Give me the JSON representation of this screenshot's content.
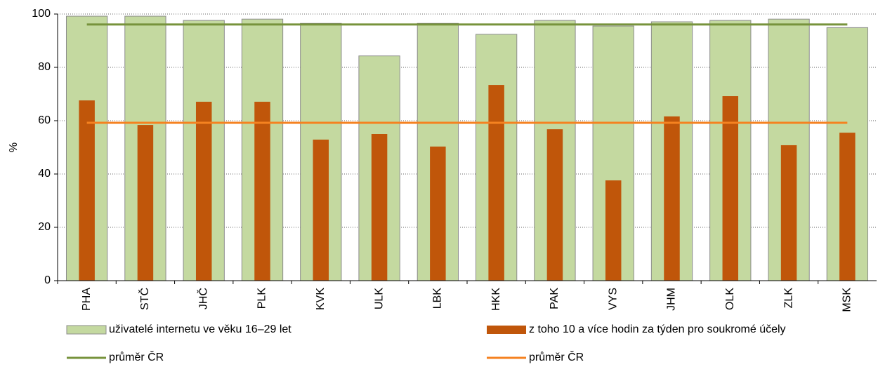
{
  "chart_data": {
    "type": "bar",
    "y_label": "%",
    "categories": [
      "PHA",
      "STČ",
      "JHČ",
      "PLK",
      "KVK",
      "ULK",
      "LBK",
      "HKK",
      "PAK",
      "VYS",
      "JHM",
      "OLK",
      "ZLK",
      "MSK"
    ],
    "series": [
      {
        "name": "uživatelé internetu ve věku 16–29 let",
        "type": "bar",
        "color": "#c4d9a0",
        "values": [
          99.2,
          99.2,
          97.6,
          98.1,
          96.5,
          84.3,
          96.5,
          92.4,
          97.6,
          95.5,
          97.1,
          97.6,
          98.1,
          94.9
        ]
      },
      {
        "name": "z toho 10 a více hodin za týden pro soukromé účely",
        "type": "bar",
        "color": "#c0560a",
        "values": [
          67.6,
          58.4,
          67.1,
          67.1,
          52.9,
          55.0,
          50.3,
          73.4,
          56.8,
          37.6,
          61.6,
          69.2,
          50.8,
          55.5
        ]
      },
      {
        "name": "průměr ČR",
        "type": "line",
        "color": "#77933c",
        "value": 96.1
      },
      {
        "name": "průměr ČR",
        "type": "line",
        "color": "#f58220",
        "value": 59.2
      }
    ],
    "ylim": [
      0,
      100
    ],
    "yticks": [
      0,
      20,
      40,
      60,
      80,
      100
    ],
    "grid": true
  }
}
